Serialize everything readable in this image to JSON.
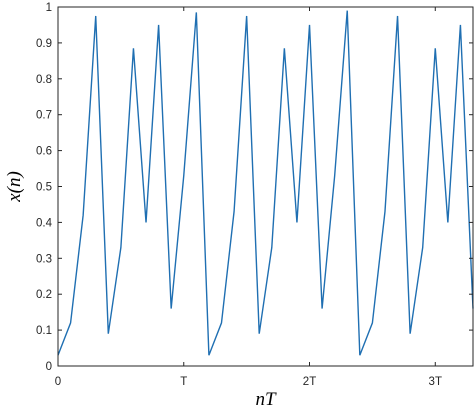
{
  "chart_data": {
    "type": "line",
    "xlabel": "nT",
    "ylabel": "x(n)",
    "xlim": [
      0,
      3.3
    ],
    "ylim": [
      0,
      1
    ],
    "grid": false,
    "x_ticks": [
      {
        "value": 0,
        "label": "0"
      },
      {
        "value": 1,
        "label": "T"
      },
      {
        "value": 2,
        "label": "2T"
      },
      {
        "value": 3,
        "label": "3T"
      }
    ],
    "y_ticks": [
      {
        "value": 0,
        "label": "0"
      },
      {
        "value": 0.1,
        "label": "0.1"
      },
      {
        "value": 0.2,
        "label": "0.2"
      },
      {
        "value": 0.3,
        "label": "0.3"
      },
      {
        "value": 0.4,
        "label": "0.4"
      },
      {
        "value": 0.5,
        "label": "0.5"
      },
      {
        "value": 0.6,
        "label": "0.6"
      },
      {
        "value": 0.7,
        "label": "0.7"
      },
      {
        "value": 0.8,
        "label": "0.8"
      },
      {
        "value": 0.9,
        "label": "0.9"
      },
      {
        "value": 1,
        "label": "1"
      }
    ],
    "series": [
      {
        "color": "#1f6fb2",
        "x": [
          0,
          0.1,
          0.2,
          0.3,
          0.4,
          0.5,
          0.6,
          0.7,
          0.8,
          0.9,
          1.0,
          1.1,
          1.2,
          1.3,
          1.4,
          1.5,
          1.6,
          1.7,
          1.8,
          1.9,
          2.0,
          2.1,
          2.2,
          2.3,
          2.4,
          2.5,
          2.6,
          2.7,
          2.8,
          2.9,
          3.0,
          3.1,
          3.2,
          3.3
        ],
        "y": [
          0.03,
          0.12,
          0.42,
          0.975,
          0.09,
          0.33,
          0.885,
          0.4,
          0.95,
          0.16,
          0.53,
          0.985,
          0.03,
          0.12,
          0.43,
          0.975,
          0.09,
          0.33,
          0.885,
          0.4,
          0.95,
          0.16,
          0.53,
          0.99,
          0.03,
          0.12,
          0.43,
          0.975,
          0.09,
          0.33,
          0.885,
          0.4,
          0.95,
          0.16
        ]
      }
    ]
  }
}
